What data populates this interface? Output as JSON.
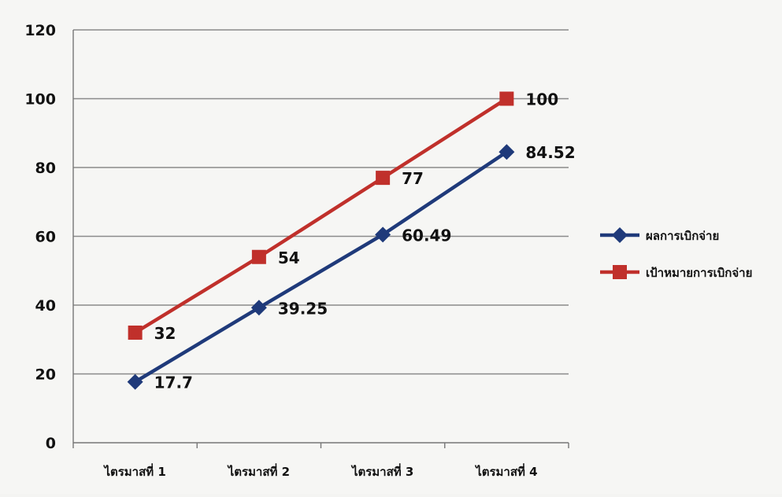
{
  "chart_data": {
    "type": "line",
    "categories": [
      "ไตรมาสที่ 1",
      "ไตรมาสที่ 2",
      "ไตรมาสที่ 3",
      "ไตรมาสที่ 4"
    ],
    "series": [
      {
        "name": "ผลการเบิกจ่าย",
        "values": [
          17.7,
          39.25,
          60.49,
          84.52
        ],
        "labels": [
          "17.7",
          "39.25",
          "60.49",
          "84.52"
        ],
        "color": "#1f3a7a",
        "marker": "diamond"
      },
      {
        "name": "เป้าหมายการเบิกจ่าย",
        "values": [
          32,
          54,
          77,
          100
        ],
        "labels": [
          "32",
          "54",
          "77",
          "100"
        ],
        "color": "#c0302b",
        "marker": "square"
      }
    ],
    "yticks": [
      "0",
      "20",
      "40",
      "60",
      "80",
      "100",
      "120"
    ],
    "ylim": [
      0,
      120
    ],
    "grid": true,
    "legend": "right",
    "title": "",
    "xlabel": "",
    "ylabel": ""
  }
}
